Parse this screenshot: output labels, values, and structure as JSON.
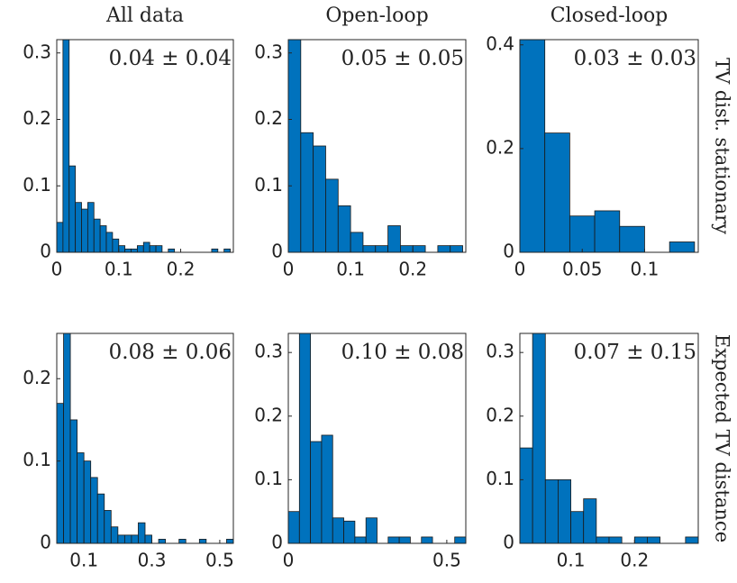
{
  "chart_data": [
    {
      "type": "histogram",
      "title": "All data",
      "annotation": "0.04 ± 0.04",
      "color": "#0072bd",
      "bins": [
        0,
        0.01,
        0.02,
        0.03,
        0.04,
        0.05,
        0.06,
        0.07,
        0.08,
        0.09,
        0.1,
        0.11,
        0.12,
        0.13,
        0.14,
        0.15,
        0.16,
        0.17,
        0.18,
        0.19,
        0.2,
        0.21,
        0.22,
        0.23,
        0.24,
        0.25,
        0.26,
        0.27,
        0.28
      ],
      "values": [
        0.045,
        0.32,
        0.13,
        0.075,
        0.065,
        0.075,
        0.05,
        0.04,
        0.03,
        0.02,
        0.01,
        0.005,
        0.005,
        0.01,
        0.015,
        0.01,
        0.01,
        0,
        0.005,
        0,
        0,
        0,
        0,
        0,
        0,
        0.005,
        0,
        0.005
      ],
      "xlim": [
        0,
        0.285
      ],
      "xticks": [
        0,
        0.1,
        0.2
      ],
      "ylim": [
        0,
        0.32
      ],
      "yticks": [
        0,
        0.1,
        0.2,
        0.3
      ]
    },
    {
      "type": "histogram",
      "title": "Open-loop",
      "annotation": "0.05 ± 0.05",
      "color": "#0072bd",
      "bins": [
        0,
        0.02,
        0.04,
        0.06,
        0.08,
        0.1,
        0.12,
        0.14,
        0.16,
        0.18,
        0.2,
        0.22,
        0.24,
        0.26,
        0.28
      ],
      "values": [
        0.32,
        0.18,
        0.16,
        0.11,
        0.07,
        0.03,
        0.01,
        0.01,
        0.04,
        0.01,
        0.01,
        0,
        0.01,
        0.01
      ],
      "xlim": [
        0,
        0.285
      ],
      "xticks": [
        0,
        0.1,
        0.2
      ],
      "ylim": [
        0,
        0.32
      ],
      "yticks": [
        0,
        0.1,
        0.2,
        0.3
      ]
    },
    {
      "type": "histogram",
      "title": "Closed-loop",
      "annotation": "0.03 ± 0.03",
      "row_label": "TV dist. stationary",
      "color": "#0072bd",
      "bins": [
        0,
        0.02,
        0.04,
        0.06,
        0.08,
        0.1,
        0.12,
        0.14
      ],
      "values": [
        0.42,
        0.23,
        0.07,
        0.08,
        0.05,
        0,
        0.02
      ],
      "xlim": [
        0,
        0.143
      ],
      "xticks": [
        0,
        0.05,
        0.1
      ],
      "ylim": [
        0,
        0.41
      ],
      "yticks": [
        0,
        0.2,
        0.4
      ]
    },
    {
      "type": "histogram",
      "annotation": "0.08 ± 0.06",
      "color": "#0072bd",
      "bins": [
        0.02,
        0.04,
        0.06,
        0.08,
        0.1,
        0.12,
        0.14,
        0.16,
        0.18,
        0.2,
        0.22,
        0.24,
        0.26,
        0.28,
        0.3,
        0.32,
        0.34,
        0.36,
        0.38,
        0.4,
        0.42,
        0.44,
        0.46,
        0.48,
        0.5,
        0.52,
        0.54
      ],
      "values": [
        0.17,
        0.26,
        0.15,
        0.11,
        0.1,
        0.08,
        0.06,
        0.04,
        0.02,
        0.01,
        0.01,
        0.01,
        0.025,
        0.01,
        0,
        0.005,
        0,
        0,
        0.005,
        0,
        0,
        0.005,
        0,
        0,
        0,
        0.005
      ],
      "xlim": [
        0.02,
        0.54
      ],
      "xticks": [
        0.1,
        0.3,
        0.5
      ],
      "ylim": [
        0,
        0.255
      ],
      "yticks": [
        0,
        0.1,
        0.2
      ]
    },
    {
      "type": "histogram",
      "annotation": "0.10 ± 0.08",
      "color": "#0072bd",
      "bins": [
        0,
        0.035,
        0.07,
        0.105,
        0.14,
        0.175,
        0.21,
        0.245,
        0.28,
        0.315,
        0.35,
        0.385,
        0.42,
        0.455,
        0.49,
        0.525,
        0.56
      ],
      "values": [
        0.05,
        0.33,
        0.16,
        0.17,
        0.04,
        0.035,
        0.01,
        0.04,
        0,
        0.01,
        0.01,
        0,
        0.01,
        0,
        0,
        0.01
      ],
      "xlim": [
        0,
        0.56
      ],
      "xticks": [
        0,
        0.5
      ],
      "ylim": [
        0,
        0.33
      ],
      "yticks": [
        0,
        0.1,
        0.2,
        0.3
      ]
    },
    {
      "type": "histogram",
      "annotation": "0.07 ± 0.15",
      "row_label": "Expected TV distance",
      "color": "#0072bd",
      "bins": [
        0.02,
        0.04,
        0.06,
        0.08,
        0.1,
        0.12,
        0.14,
        0.16,
        0.18,
        0.2,
        0.22,
        0.24,
        0.26,
        0.28,
        0.3
      ],
      "values": [
        0.15,
        0.33,
        0.1,
        0.1,
        0.05,
        0.07,
        0.01,
        0.01,
        0,
        0.01,
        0.01,
        0,
        0,
        0.01
      ],
      "xlim": [
        0.02,
        0.3
      ],
      "xticks": [
        0.1,
        0.2
      ],
      "ylim": [
        0,
        0.33
      ],
      "yticks": [
        0,
        0.1,
        0.2,
        0.3
      ]
    }
  ]
}
